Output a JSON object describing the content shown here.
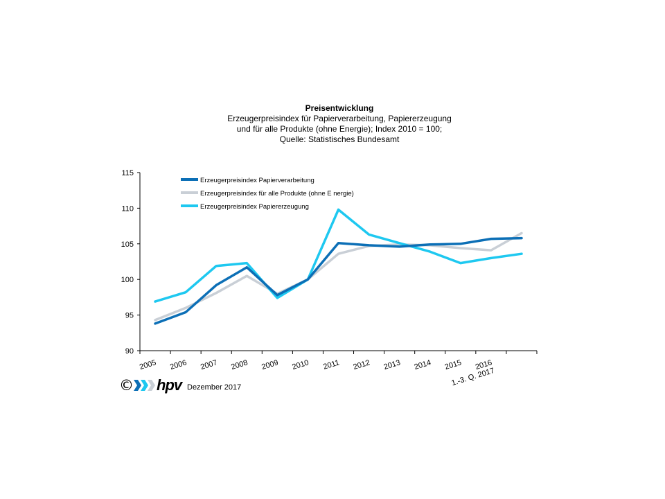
{
  "chart_data": {
    "type": "line",
    "title": "Preisentwicklung",
    "subtitle_lines": [
      "Erzeugerpreisindex  für Papierverarbeitung,  Papiererzeugung",
      "und für alle Produkte (ohne Energie); Index 2010 = 100;",
      "Quelle: Statistisches Bundesamt"
    ],
    "categories": [
      "2005",
      "2006",
      "2007",
      "2008",
      "2009",
      "2010",
      "2011",
      "2012",
      "2013",
      "2014",
      "2015",
      "2016",
      "1.-3. Q. 2017"
    ],
    "category_labels": [
      [
        "2005"
      ],
      [
        "2006"
      ],
      [
        "2007"
      ],
      [
        "2008"
      ],
      [
        "2009"
      ],
      [
        "2010"
      ],
      [
        "2011"
      ],
      [
        "2012"
      ],
      [
        "2013"
      ],
      [
        "2014"
      ],
      [
        "2015"
      ],
      [
        "2016",
        "1.-3. Q. 2017"
      ]
    ],
    "ylim": [
      90,
      115
    ],
    "yticks": [
      90,
      95,
      100,
      105,
      110,
      115
    ],
    "grid": false,
    "legend_position": "top-left",
    "series": [
      {
        "name": "Erzeugerpreisindex Papierverarbeitung",
        "color": "#0c6fb6",
        "values": [
          93.8,
          95.4,
          99.2,
          101.7,
          97.8,
          100.0,
          105.1,
          104.8,
          104.6,
          104.9,
          105.0,
          105.7,
          105.8
        ]
      },
      {
        "name": "Erzeugerpreisindex für alle Produkte (ohne E nergie)",
        "color": "#c9cfd6",
        "values": [
          94.3,
          96.0,
          98.1,
          100.5,
          98.0,
          100.0,
          103.6,
          104.7,
          104.9,
          104.8,
          104.4,
          104.1,
          106.5
        ]
      },
      {
        "name": "Erzeugerpreisindex Papiererzeugung",
        "color": "#1ec8f0",
        "values": [
          96.9,
          98.2,
          101.9,
          102.3,
          97.4,
          100.0,
          109.8,
          106.3,
          105.1,
          103.9,
          102.3,
          103.0,
          103.6
        ]
      }
    ]
  },
  "footer": {
    "copyright_symbol": "©",
    "logo_text": "hpv",
    "logo_arrow_colors": [
      "#0c6fb6",
      "#1ec8f0",
      "#c9cfd6"
    ],
    "date": "Dezember 2017"
  }
}
